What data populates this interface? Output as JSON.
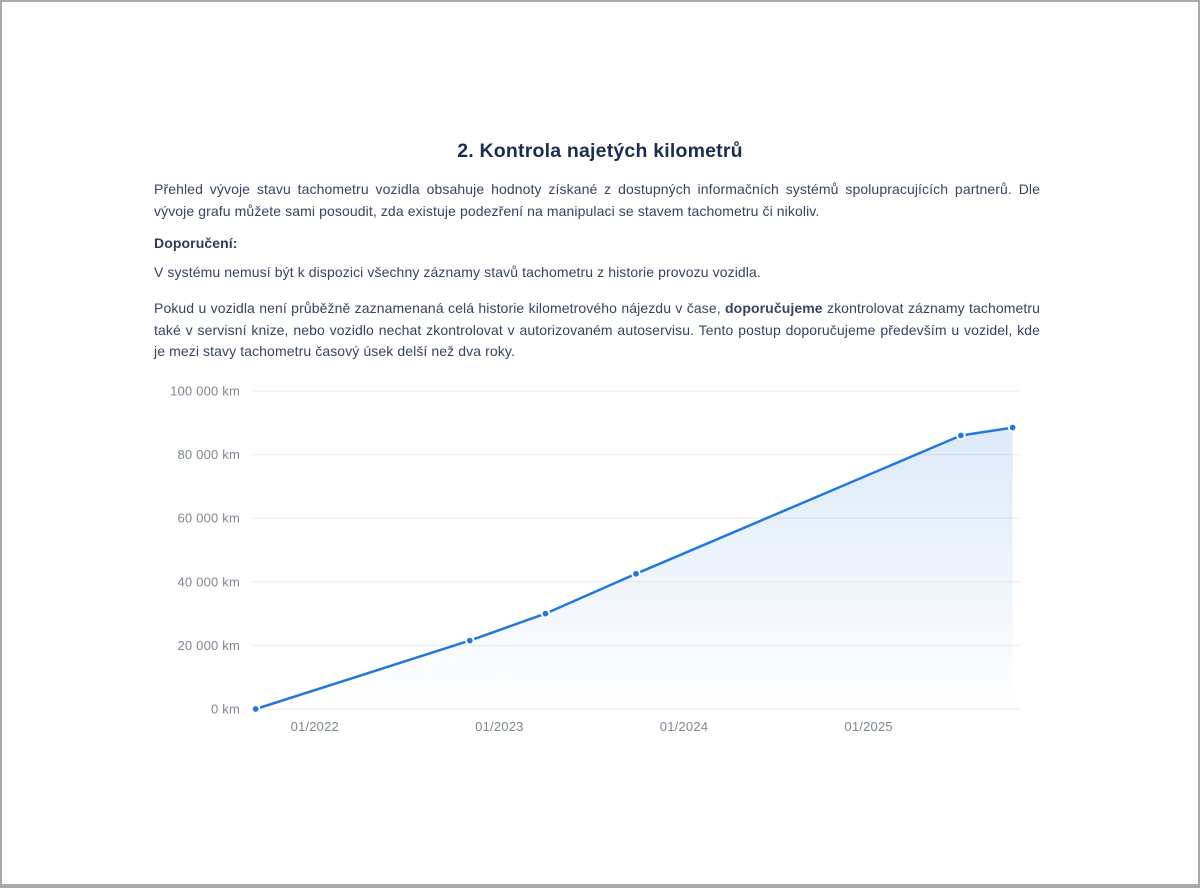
{
  "page": {
    "title": "2. Kontrola najetých kilometrů",
    "paragraph1": "Přehled vývoje stavu tachometru vozidla obsahuje hodnoty získané z dostupných informačních systémů spolupracujících partnerů. Dle vývoje grafu můžete sami posoudit, zda existuje podezření na manipulaci se stavem tachometru či nikoliv.",
    "recommendation_label": "Doporučení:",
    "paragraph2": "V systému nemusí být k dispozici všechny záznamy stavů tachometru z historie provozu vozidla.",
    "paragraph3": {
      "before_bold": "Pokud u vozidla není průběžně zaznamenaná celá historie kilometrového nájezdu v čase, ",
      "bold": "doporučujeme",
      "after_bold": " zkontrolovat záznamy tachometru také v servisní knize, nebo vozidlo nechat zkontrolovat v autorizovaném autoservisu. Tento postup doporučujeme především u vozidel, kde je mezi stavy tachometru časový úsek delší než dva roky."
    }
  },
  "colors": {
    "heading": "#1c2d4f",
    "body_text": "#36445f",
    "axis_label": "#7d8695",
    "gridline": "#ebebeb",
    "accent_blue": "#2478d8",
    "frame_border": "#a9a9a9"
  },
  "chart_data": {
    "type": "line",
    "y_unit": "km",
    "x_unit": "month/year",
    "points": [
      {
        "date": "09/2021",
        "x": 2021.68,
        "km": 0
      },
      {
        "date": "11/2022",
        "x": 2022.84,
        "km": 21500
      },
      {
        "date": "03/2023",
        "x": 2023.25,
        "km": 30000
      },
      {
        "date": "09/2023",
        "x": 2023.74,
        "km": 42500
      },
      {
        "date": "07/2025",
        "x": 2025.5,
        "km": 86000
      },
      {
        "date": "10/2025",
        "x": 2025.78,
        "km": 88500
      }
    ],
    "y_ticks": [
      {
        "label": "0 km",
        "value": 0
      },
      {
        "label": "20 000 km",
        "value": 20000
      },
      {
        "label": "40 000 km",
        "value": 40000
      },
      {
        "label": "60 000 km",
        "value": 60000
      },
      {
        "label": "80 000 km",
        "value": 80000
      },
      {
        "label": "100 000 km",
        "value": 100000
      }
    ],
    "x_ticks": [
      {
        "label": "01/2022",
        "value": 2022
      },
      {
        "label": "01/2023",
        "value": 2023
      },
      {
        "label": "01/2024",
        "value": 2024
      },
      {
        "label": "01/2025",
        "value": 2025
      }
    ],
    "ylim": [
      0,
      100000
    ],
    "xlim": [
      2021.66,
      2025.82
    ],
    "grid": "horizontal",
    "legend": "none",
    "line_color": "#2478d8",
    "grid_color": "#ebebeb",
    "area_opacity_top": 0.16,
    "area_opacity_bottom": 0
  }
}
